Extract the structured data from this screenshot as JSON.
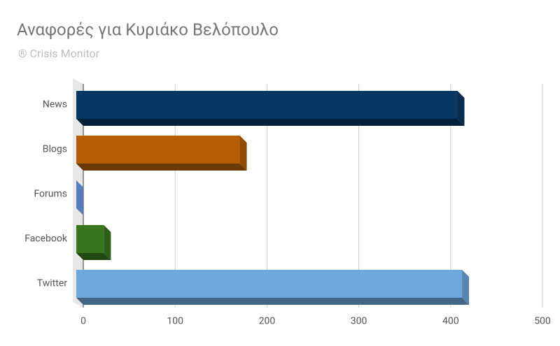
{
  "chart_data": {
    "type": "bar3d",
    "title": "Αναφορές για Κυριάκο Βελόπουλο",
    "subtitle": "® Crisis Monitor",
    "categories": [
      "News",
      "Blogs",
      "Forums",
      "Facebook",
      "Twitter"
    ],
    "values": [
      415,
      178,
      0,
      30,
      420
    ],
    "colors": [
      "#073763",
      "#b45f06",
      "#6d9eeb",
      "#38761d",
      "#6fa8dc"
    ],
    "xlim": [
      0,
      500
    ],
    "xticks": [
      0,
      100,
      200,
      300,
      400,
      500
    ],
    "grid": true
  }
}
